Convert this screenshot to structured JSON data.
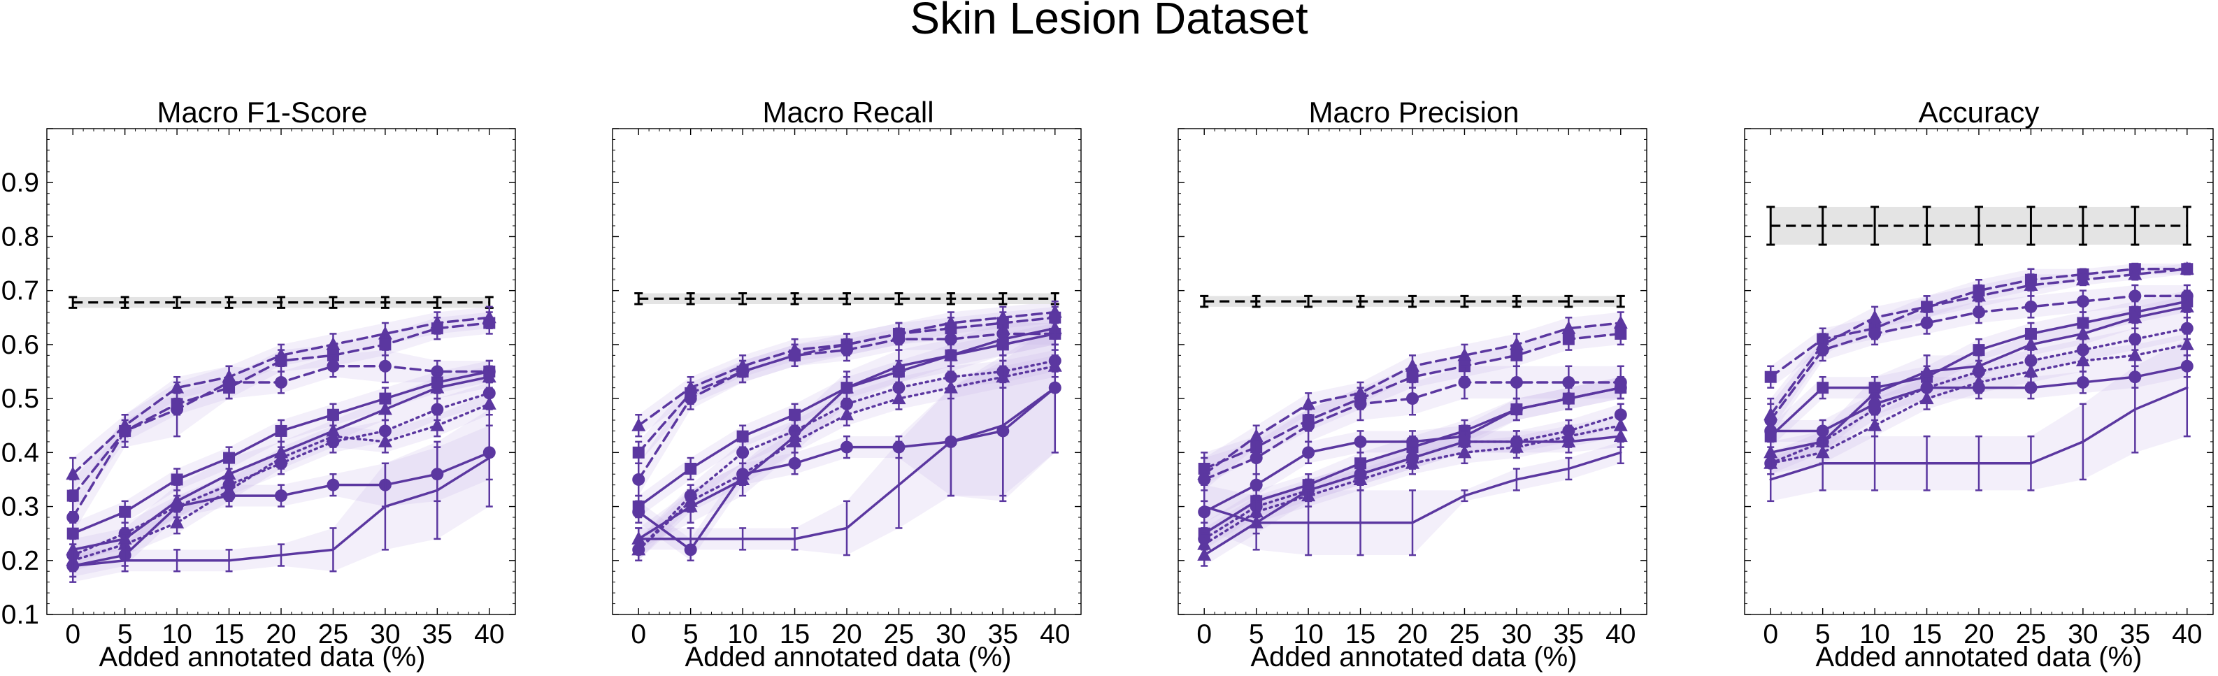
{
  "figure": {
    "title": "Skin Lesion Dataset"
  },
  "colors": {
    "series": "#5b37a0",
    "band": "#c9b8e6",
    "baseline": "#000000",
    "baseline_band": "#e4e4e4"
  },
  "chart_data": [
    {
      "type": "line",
      "title": "Macro F1-Score",
      "xlabel": "Added annotated data (%)",
      "ylabel": "",
      "x": [
        0,
        5,
        10,
        15,
        20,
        25,
        30,
        35,
        40
      ],
      "xlim": [
        -2.5,
        42.5
      ],
      "ylim": [
        0.1,
        1.0
      ],
      "yticks": [
        0.1,
        0.2,
        0.3,
        0.4,
        0.5,
        0.6,
        0.7,
        0.8,
        0.9
      ],
      "baseline": {
        "value": 0.678,
        "err": 0.01,
        "style": "dashed",
        "color": "#000000"
      },
      "series": [
        {
          "linestyle": "dashed",
          "marker": "triangle",
          "values": [
            0.36,
            0.45,
            0.52,
            0.54,
            0.58,
            0.6,
            0.62,
            0.64,
            0.65
          ],
          "err": [
            0.03,
            0.02,
            0.02,
            0.02,
            0.02,
            0.02,
            0.02,
            0.02,
            0.02
          ]
        },
        {
          "linestyle": "dashed",
          "marker": "square",
          "values": [
            0.32,
            0.44,
            0.49,
            0.52,
            0.57,
            0.58,
            0.6,
            0.63,
            0.64
          ],
          "err": [
            0.03,
            0.02,
            0.02,
            0.02,
            0.02,
            0.02,
            0.02,
            0.02,
            0.02
          ]
        },
        {
          "linestyle": "dashed",
          "marker": "circle",
          "values": [
            0.28,
            0.44,
            0.48,
            0.53,
            0.53,
            0.56,
            0.56,
            0.55,
            0.55
          ],
          "err": [
            0.03,
            0.03,
            0.05,
            0.03,
            0.02,
            0.02,
            0.03,
            0.02,
            0.02
          ]
        },
        {
          "linestyle": "solid",
          "marker": "square",
          "values": [
            0.25,
            0.29,
            0.35,
            0.39,
            0.44,
            0.47,
            0.5,
            0.53,
            0.55
          ],
          "err": [
            0.02,
            0.02,
            0.02,
            0.02,
            0.02,
            0.02,
            0.02,
            0.02,
            0.02
          ]
        },
        {
          "linestyle": "solid",
          "marker": "triangle",
          "values": [
            0.22,
            0.24,
            0.31,
            0.36,
            0.4,
            0.44,
            0.48,
            0.52,
            0.54
          ],
          "err": [
            0.02,
            0.02,
            0.03,
            0.03,
            0.02,
            0.02,
            0.02,
            0.02,
            0.02
          ]
        },
        {
          "linestyle": "dotted",
          "marker": "circle",
          "values": [
            0.21,
            0.25,
            0.3,
            0.34,
            0.38,
            0.42,
            0.44,
            0.48,
            0.51
          ],
          "err": [
            0.02,
            0.02,
            0.02,
            0.02,
            0.02,
            0.02,
            0.02,
            0.02,
            0.02
          ]
        },
        {
          "linestyle": "dotted",
          "marker": "triangle",
          "values": [
            0.2,
            0.23,
            0.27,
            0.33,
            0.39,
            0.43,
            0.42,
            0.45,
            0.49
          ],
          "err": [
            0.02,
            0.02,
            0.02,
            0.02,
            0.02,
            0.02,
            0.02,
            0.02,
            0.02
          ]
        },
        {
          "linestyle": "solid",
          "marker": "circle",
          "values": [
            0.19,
            0.21,
            0.3,
            0.32,
            0.32,
            0.34,
            0.34,
            0.36,
            0.4
          ],
          "err": [
            0.02,
            0.02,
            0.02,
            0.02,
            0.02,
            0.02,
            0.04,
            0.05,
            0.05
          ]
        },
        {
          "linestyle": "solid",
          "marker": "none",
          "values": [
            0.19,
            0.2,
            0.2,
            0.2,
            0.21,
            0.22,
            0.3,
            0.33,
            0.39
          ],
          "err": [
            0.03,
            0.02,
            0.02,
            0.02,
            0.02,
            0.04,
            0.08,
            0.09,
            0.09
          ]
        }
      ]
    },
    {
      "type": "line",
      "title": "Macro Recall",
      "xlabel": "Added annotated data (%)",
      "ylabel": "",
      "x": [
        0,
        5,
        10,
        15,
        20,
        25,
        30,
        35,
        40
      ],
      "xlim": [
        -2.5,
        42.5
      ],
      "ylim": [
        0.1,
        1.0
      ],
      "yticks": [],
      "baseline": {
        "value": 0.685,
        "err": 0.01,
        "style": "dashed",
        "color": "#000000"
      },
      "series": [
        {
          "linestyle": "dashed",
          "marker": "triangle",
          "values": [
            0.45,
            0.52,
            0.56,
            0.59,
            0.6,
            0.62,
            0.64,
            0.65,
            0.66
          ],
          "err": [
            0.02,
            0.02,
            0.02,
            0.02,
            0.02,
            0.02,
            0.02,
            0.02,
            0.02
          ]
        },
        {
          "linestyle": "dashed",
          "marker": "square",
          "values": [
            0.4,
            0.51,
            0.55,
            0.58,
            0.6,
            0.62,
            0.63,
            0.64,
            0.65
          ],
          "err": [
            0.02,
            0.02,
            0.02,
            0.02,
            0.02,
            0.02,
            0.02,
            0.02,
            0.02
          ]
        },
        {
          "linestyle": "dashed",
          "marker": "circle",
          "values": [
            0.35,
            0.5,
            0.55,
            0.58,
            0.59,
            0.61,
            0.61,
            0.62,
            0.62
          ],
          "err": [
            0.03,
            0.02,
            0.02,
            0.02,
            0.02,
            0.02,
            0.02,
            0.02,
            0.02
          ]
        },
        {
          "linestyle": "solid",
          "marker": "square",
          "values": [
            0.3,
            0.37,
            0.43,
            0.47,
            0.52,
            0.55,
            0.58,
            0.6,
            0.62
          ],
          "err": [
            0.02,
            0.02,
            0.02,
            0.02,
            0.02,
            0.02,
            0.02,
            0.02,
            0.02
          ]
        },
        {
          "linestyle": "solid",
          "marker": "triangle",
          "values": [
            0.24,
            0.3,
            0.35,
            0.43,
            0.52,
            0.56,
            0.58,
            0.61,
            0.63
          ],
          "err": [
            0.02,
            0.03,
            0.03,
            0.03,
            0.03,
            0.03,
            0.03,
            0.03,
            0.03
          ]
        },
        {
          "linestyle": "dotted",
          "marker": "circle",
          "values": [
            0.22,
            0.32,
            0.4,
            0.44,
            0.49,
            0.52,
            0.54,
            0.55,
            0.57
          ],
          "err": [
            0.02,
            0.02,
            0.02,
            0.02,
            0.02,
            0.02,
            0.02,
            0.02,
            0.02
          ]
        },
        {
          "linestyle": "dotted",
          "marker": "triangle",
          "values": [
            0.22,
            0.31,
            0.36,
            0.42,
            0.47,
            0.5,
            0.52,
            0.54,
            0.56
          ],
          "err": [
            0.02,
            0.02,
            0.02,
            0.02,
            0.02,
            0.02,
            0.02,
            0.02,
            0.02
          ]
        },
        {
          "linestyle": "solid",
          "marker": "circle",
          "values": [
            0.29,
            0.22,
            0.36,
            0.38,
            0.41,
            0.41,
            0.42,
            0.44,
            0.52
          ],
          "err": [
            0.02,
            0.02,
            0.02,
            0.02,
            0.02,
            0.02,
            0.1,
            0.13,
            0.12
          ]
        },
        {
          "linestyle": "solid",
          "marker": "none",
          "values": [
            0.24,
            0.24,
            0.24,
            0.24,
            0.26,
            0.34,
            0.42,
            0.45,
            0.52
          ],
          "err": [
            0.02,
            0.02,
            0.02,
            0.02,
            0.05,
            0.08,
            0.1,
            0.13,
            0.12
          ]
        }
      ]
    },
    {
      "type": "line",
      "title": "Macro Precision",
      "xlabel": "Added annotated data (%)",
      "ylabel": "",
      "x": [
        0,
        5,
        10,
        15,
        20,
        25,
        30,
        35,
        40
      ],
      "xlim": [
        -2.5,
        42.5
      ],
      "ylim": [
        0.1,
        1.0
      ],
      "yticks": [],
      "baseline": {
        "value": 0.68,
        "err": 0.01,
        "style": "dashed",
        "color": "#000000"
      },
      "series": [
        {
          "linestyle": "dashed",
          "marker": "triangle",
          "values": [
            0.36,
            0.43,
            0.49,
            0.51,
            0.56,
            0.58,
            0.6,
            0.63,
            0.64
          ],
          "err": [
            0.03,
            0.02,
            0.02,
            0.02,
            0.02,
            0.02,
            0.02,
            0.02,
            0.02
          ]
        },
        {
          "linestyle": "dashed",
          "marker": "square",
          "values": [
            0.37,
            0.41,
            0.46,
            0.5,
            0.54,
            0.56,
            0.58,
            0.61,
            0.62
          ],
          "err": [
            0.03,
            0.02,
            0.02,
            0.02,
            0.02,
            0.02,
            0.02,
            0.02,
            0.02
          ]
        },
        {
          "linestyle": "dashed",
          "marker": "circle",
          "values": [
            0.35,
            0.39,
            0.45,
            0.49,
            0.5,
            0.53,
            0.53,
            0.53,
            0.53
          ],
          "err": [
            0.04,
            0.03,
            0.03,
            0.03,
            0.03,
            0.03,
            0.03,
            0.03,
            0.03
          ]
        },
        {
          "linestyle": "solid",
          "marker": "circle",
          "values": [
            0.29,
            0.34,
            0.4,
            0.42,
            0.42,
            0.43,
            0.48,
            0.5,
            0.52
          ],
          "err": [
            0.02,
            0.02,
            0.02,
            0.02,
            0.02,
            0.02,
            0.02,
            0.02,
            0.02
          ]
        },
        {
          "linestyle": "solid",
          "marker": "square",
          "values": [
            0.25,
            0.31,
            0.34,
            0.38,
            0.41,
            0.44,
            0.48,
            0.5,
            0.52
          ],
          "err": [
            0.02,
            0.02,
            0.02,
            0.02,
            0.02,
            0.02,
            0.02,
            0.02,
            0.02
          ]
        },
        {
          "linestyle": "dotted",
          "marker": "circle",
          "values": [
            0.24,
            0.3,
            0.33,
            0.36,
            0.39,
            0.42,
            0.42,
            0.44,
            0.47
          ],
          "err": [
            0.02,
            0.02,
            0.02,
            0.02,
            0.02,
            0.02,
            0.02,
            0.02,
            0.02
          ]
        },
        {
          "linestyle": "dotted",
          "marker": "triangle",
          "values": [
            0.23,
            0.29,
            0.32,
            0.35,
            0.38,
            0.4,
            0.41,
            0.43,
            0.45
          ],
          "err": [
            0.02,
            0.02,
            0.02,
            0.02,
            0.02,
            0.02,
            0.02,
            0.02,
            0.02
          ]
        },
        {
          "linestyle": "solid",
          "marker": "triangle",
          "values": [
            0.21,
            0.27,
            0.33,
            0.36,
            0.39,
            0.42,
            0.42,
            0.42,
            0.43
          ],
          "err": [
            0.02,
            0.02,
            0.02,
            0.02,
            0.02,
            0.02,
            0.02,
            0.02,
            0.02
          ]
        },
        {
          "linestyle": "solid",
          "marker": "none",
          "values": [
            0.3,
            0.27,
            0.27,
            0.27,
            0.27,
            0.32,
            0.35,
            0.37,
            0.4
          ],
          "err": [
            0.04,
            0.05,
            0.06,
            0.06,
            0.06,
            0.01,
            0.02,
            0.02,
            0.02
          ]
        }
      ]
    },
    {
      "type": "line",
      "title": "Accuracy",
      "xlabel": "Added annotated data (%)",
      "ylabel": "",
      "x": [
        0,
        5,
        10,
        15,
        20,
        25,
        30,
        35,
        40
      ],
      "xlim": [
        -2.5,
        42.5
      ],
      "ylim": [
        0.1,
        1.0
      ],
      "yticks": [],
      "baseline": {
        "value": 0.82,
        "err": 0.035,
        "style": "dashed",
        "color": "#000000"
      },
      "series": [
        {
          "linestyle": "dashed",
          "marker": "square",
          "values": [
            0.54,
            0.61,
            0.63,
            0.67,
            0.7,
            0.72,
            0.73,
            0.74,
            0.74
          ],
          "err": [
            0.02,
            0.02,
            0.02,
            0.02,
            0.02,
            0.02,
            0.01,
            0.01,
            0.01
          ]
        },
        {
          "linestyle": "dashed",
          "marker": "triangle",
          "values": [
            0.47,
            0.6,
            0.65,
            0.67,
            0.69,
            0.71,
            0.72,
            0.73,
            0.74
          ],
          "err": [
            0.03,
            0.02,
            0.02,
            0.02,
            0.02,
            0.02,
            0.01,
            0.01,
            0.01
          ]
        },
        {
          "linestyle": "dashed",
          "marker": "circle",
          "values": [
            0.46,
            0.59,
            0.62,
            0.64,
            0.66,
            0.67,
            0.68,
            0.69,
            0.69
          ],
          "err": [
            0.03,
            0.02,
            0.02,
            0.02,
            0.02,
            0.02,
            0.02,
            0.02,
            0.02
          ]
        },
        {
          "linestyle": "solid",
          "marker": "square",
          "values": [
            0.43,
            0.52,
            0.52,
            0.54,
            0.59,
            0.62,
            0.64,
            0.66,
            0.68
          ],
          "err": [
            0.02,
            0.02,
            0.02,
            0.02,
            0.02,
            0.02,
            0.02,
            0.02,
            0.02
          ]
        },
        {
          "linestyle": "solid",
          "marker": "triangle",
          "values": [
            0.4,
            0.42,
            0.51,
            0.55,
            0.56,
            0.6,
            0.62,
            0.65,
            0.67
          ],
          "err": [
            0.02,
            0.02,
            0.03,
            0.03,
            0.02,
            0.02,
            0.02,
            0.02,
            0.02
          ]
        },
        {
          "linestyle": "dotted",
          "marker": "circle",
          "values": [
            0.38,
            0.42,
            0.48,
            0.52,
            0.55,
            0.57,
            0.59,
            0.61,
            0.63
          ],
          "err": [
            0.02,
            0.02,
            0.02,
            0.02,
            0.02,
            0.02,
            0.02,
            0.02,
            0.02
          ]
        },
        {
          "linestyle": "dotted",
          "marker": "triangle",
          "values": [
            0.38,
            0.4,
            0.45,
            0.5,
            0.53,
            0.55,
            0.57,
            0.58,
            0.6
          ],
          "err": [
            0.02,
            0.02,
            0.02,
            0.02,
            0.02,
            0.02,
            0.02,
            0.02,
            0.02
          ]
        },
        {
          "linestyle": "solid",
          "marker": "circle",
          "values": [
            0.44,
            0.44,
            0.49,
            0.52,
            0.52,
            0.52,
            0.53,
            0.54,
            0.56
          ],
          "err": [
            0.02,
            0.02,
            0.02,
            0.02,
            0.02,
            0.02,
            0.02,
            0.02,
            0.02
          ]
        },
        {
          "linestyle": "solid",
          "marker": "none",
          "values": [
            0.35,
            0.38,
            0.38,
            0.38,
            0.38,
            0.38,
            0.42,
            0.48,
            0.52
          ],
          "err": [
            0.04,
            0.05,
            0.05,
            0.05,
            0.05,
            0.05,
            0.07,
            0.08,
            0.09
          ]
        }
      ]
    }
  ]
}
